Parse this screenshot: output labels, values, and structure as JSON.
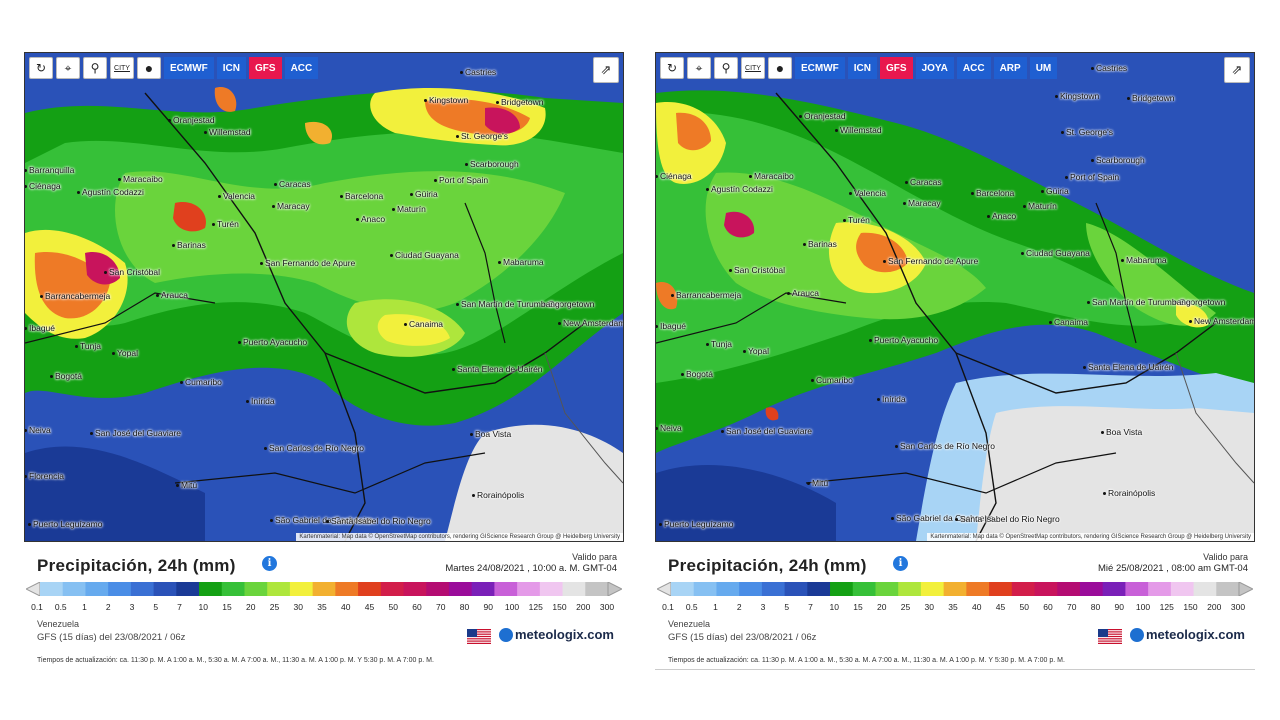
{
  "colors": {
    "active_model": "#e8174e",
    "model_button": "#1f5fd1",
    "brand": "#1b2a4a",
    "info": "#2277dd"
  },
  "icons": [
    "refresh-icon",
    "location-pin-icon",
    "zoom-icon",
    "city-toggle-icon",
    "dot-marker-icon",
    "share-icon",
    "info-icon",
    "us-flag-icon",
    "meteologix-logo-icon"
  ],
  "legend": {
    "title": "Precipitación, 24h (mm)",
    "labels": [
      "0.1",
      "0.5",
      "1",
      "2",
      "3",
      "5",
      "7",
      "10",
      "15",
      "20",
      "25",
      "30",
      "35",
      "40",
      "45",
      "50",
      "60",
      "70",
      "80",
      "90",
      "100",
      "125",
      "150",
      "200",
      "300"
    ],
    "colors": [
      "#a8d4f5",
      "#86c0f2",
      "#66aaee",
      "#4a8de6",
      "#3a70d4",
      "#2a52b8",
      "#1a3a96",
      "#14a014",
      "#36c038",
      "#6ad43c",
      "#aee63c",
      "#f2f03c",
      "#f2b030",
      "#ee7a26",
      "#e0401e",
      "#d21e4a",
      "#c8145c",
      "#b40c72",
      "#9a0c9a",
      "#7a20b8",
      "#c860d8",
      "#e49ae8",
      "#f0c6f0",
      "#e4e4e4",
      "#c4c4c4"
    ]
  },
  "panels": [
    {
      "models": [
        "ECMWF",
        "ICN",
        "GFS",
        "ACC"
      ],
      "active_model": "GFS",
      "city_label": "CITY",
      "valid_label": "Valido para",
      "valid_date": "Martes 24/08/2021 , 10:00 a. M. GMT-04",
      "region": "Venezuela",
      "model_run": "GFS  (15 días) del 23/08/2021 / 06z",
      "brand": "meteologix.com",
      "updates": "Tiempos de actualización: ca. 11:30 p. M. A 1:00 a. M., 5:30 a. M. A 7:00 a. M., 11:30 a. M. A 1:00 p. M. Y 5:30 p. M. A 7:00 p. M.",
      "attribution": "Kartenmaterial: Map data © OpenStreetMap contributors, rendering GIScience Research Group @ Heidelberg University"
    },
    {
      "models": [
        "ECMWF",
        "ICN",
        "GFS",
        "JOYA",
        "ACC",
        "ARP",
        "UM"
      ],
      "active_model": "GFS",
      "city_label": "CITY",
      "valid_label": "Valido para",
      "valid_date": "Mié 25/08/2021 , 08:00 am GMT-04",
      "region": "Venezuela",
      "model_run": "GFS  (15 días) del 23/08/2021 / 06z",
      "brand": "meteologix.com",
      "updates": "Tiempos de actualización: ca. 11:30 p. M. A 1:00 a. M., 5:30 a. M. A 7:00 a. M., 11:30 a. M. A 1:00 p. M. Y 5:30 p. M. A 7:00 p. M.",
      "attribution": "Kartenmaterial: Map data © OpenStreetMap contributors, rendering GIScience Research Group @ Heidelberg University"
    }
  ],
  "places": [
    "Castries",
    "Kingstown",
    "Bridgetown",
    "Oranjestad",
    "Willemstad",
    "St. George's",
    "Scarborough",
    "Port of Spain",
    "Maracaibo",
    "Caracas",
    "Valencia",
    "Maracay",
    "Barcelona",
    "Güiria",
    "Maturín",
    "Anaco",
    "Agustín Codazzi",
    "Barranquilla",
    "Ciénaga",
    "Turén",
    "Barinas",
    "San Fernando de Apure",
    "Ciudad Guayana",
    "Mabaruma",
    "Georgetown",
    "New Amsterdam",
    "San Cristóbal",
    "Barrancabermeja",
    "Arauca",
    "San Martín de Turumbang",
    "Canaima",
    "Puerto Ayacucho",
    "Tunja",
    "Yopal",
    "Bogotá",
    "Santa Elena de Uairén",
    "Cumaribo",
    "Inírida",
    "San José del Guaviare",
    "Boa Vista",
    "San Carlos de Río Negro",
    "Mitú",
    "Rorainópolis",
    "Puerto Leguízamo",
    "São Gabriel da Cachoeira",
    "Santa Isabel do Rio Negro",
    "Ibagué",
    "Neiva",
    "Florencia"
  ]
}
